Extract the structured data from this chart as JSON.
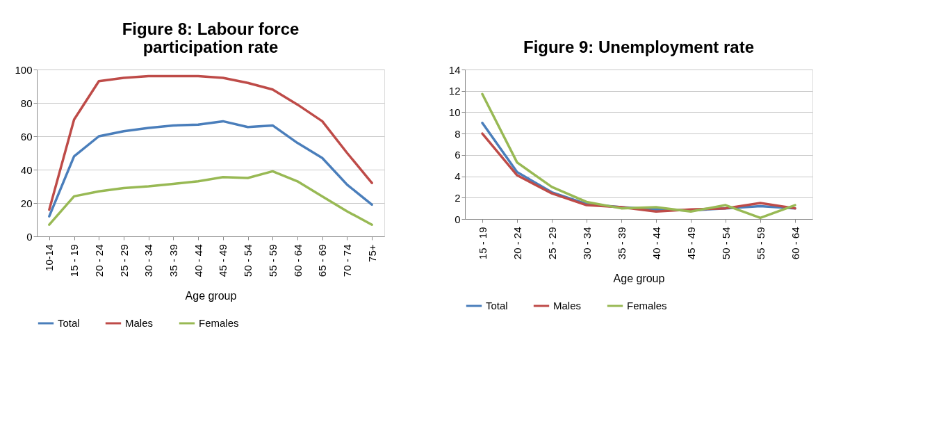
{
  "chart_data": [
    {
      "type": "line",
      "title": "Figure 8: Labour force\nparticipation rate",
      "xlabel": "Age group",
      "categories": [
        "10-14",
        "15 - 19",
        "20 - 24",
        "25 - 29",
        "30 - 34",
        "35 - 39",
        "40 - 44",
        "45 - 49",
        "50 - 54",
        "55 - 59",
        "60 - 64",
        "65 - 69",
        "70 - 74",
        "75+"
      ],
      "series": [
        {
          "name": "Total",
          "color": "#4a7ebb",
          "values": [
            12,
            48,
            60,
            63,
            65,
            66.5,
            67,
            69,
            65.5,
            66.5,
            56,
            47,
            31,
            19
          ]
        },
        {
          "name": "Males",
          "color": "#be4b48",
          "values": [
            16,
            70,
            93,
            95,
            96,
            96,
            96,
            95,
            92,
            88,
            79,
            69,
            50,
            32
          ]
        },
        {
          "name": "Females",
          "color": "#98b954",
          "values": [
            7,
            24,
            27,
            29,
            30,
            31.5,
            33,
            35.5,
            35,
            39,
            33,
            24,
            15,
            7
          ]
        }
      ],
      "ylim": [
        0,
        100
      ],
      "yticks": [
        0,
        20,
        40,
        60,
        80,
        100
      ],
      "grid": "y",
      "legend": "bottom",
      "marker": "none",
      "line_style": "solid"
    },
    {
      "type": "line",
      "title": "Figure 9: Unemployment rate",
      "xlabel": "Age group",
      "categories": [
        "15 - 19",
        "20 - 24",
        "25 - 29",
        "30 - 34",
        "35 - 39",
        "40 - 44",
        "45 - 49",
        "50 - 54",
        "55 - 59",
        "60 - 64"
      ],
      "series": [
        {
          "name": "Total",
          "color": "#4a7ebb",
          "values": [
            9,
            4.4,
            2.5,
            1.4,
            1.1,
            0.9,
            0.8,
            1.0,
            1.2,
            1.0
          ]
        },
        {
          "name": "Males",
          "color": "#be4b48",
          "values": [
            8,
            4.1,
            2.4,
            1.3,
            1.1,
            0.7,
            0.9,
            1.0,
            1.5,
            1.0
          ]
        },
        {
          "name": "Females",
          "color": "#98b954",
          "values": [
            11.7,
            5.3,
            3.0,
            1.6,
            1.0,
            1.1,
            0.7,
            1.3,
            0.1,
            1.3
          ]
        }
      ],
      "ylim": [
        0,
        14
      ],
      "yticks": [
        0,
        2,
        4,
        6,
        8,
        10,
        12,
        14
      ],
      "grid": "y",
      "legend": "bottom",
      "marker": "none",
      "line_style": "solid"
    }
  ]
}
